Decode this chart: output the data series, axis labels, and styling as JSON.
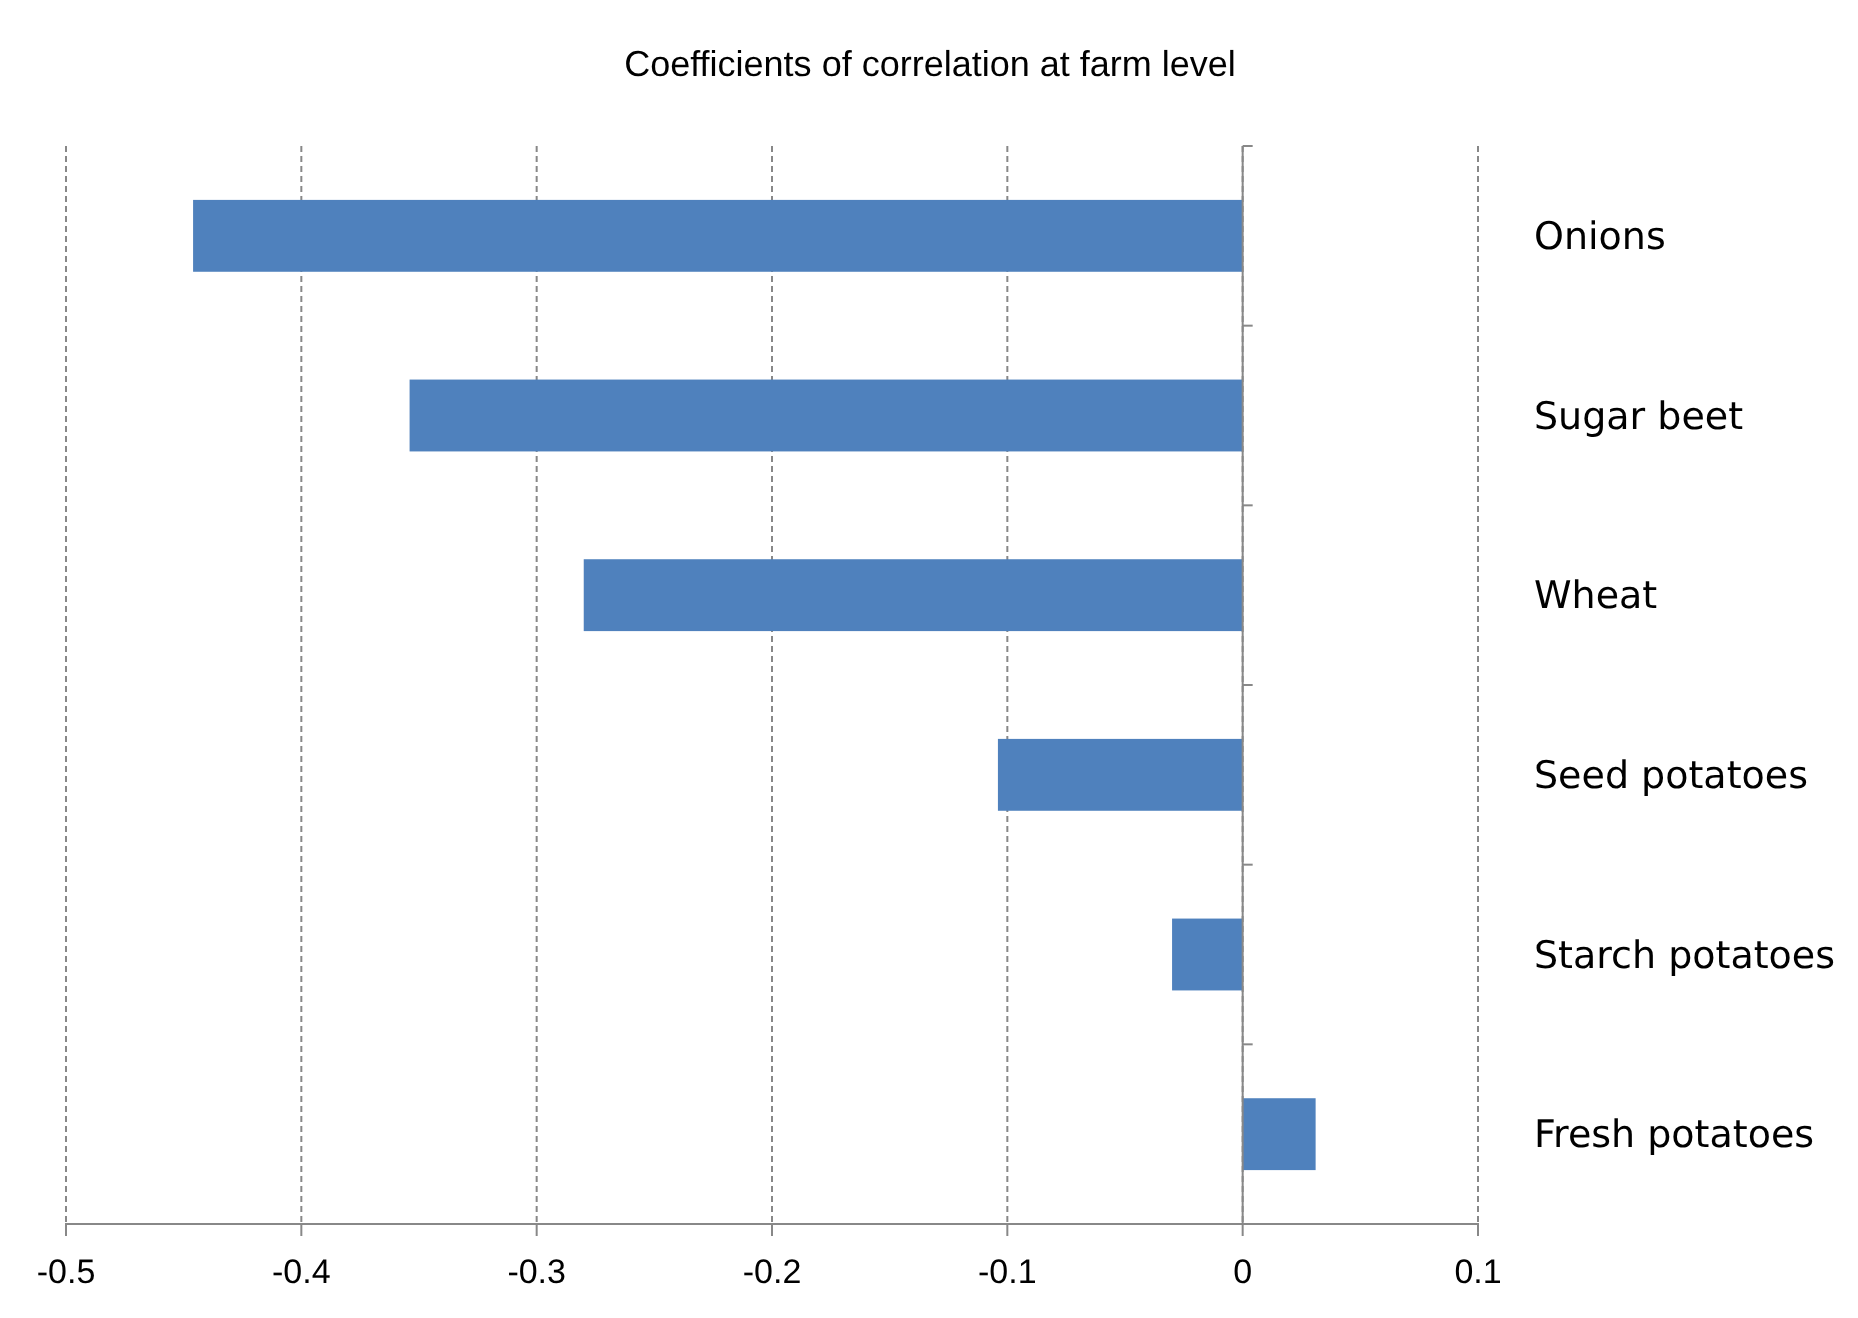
{
  "chart_data": {
    "type": "bar",
    "orientation": "horizontal",
    "title": "Coefficients of correlation at farm level",
    "categories": [
      "Onions",
      "Sugar beet",
      "Wheat",
      "Seed potatoes",
      "Starch potatoes",
      "Fresh potatoes"
    ],
    "values": [
      -0.446,
      -0.354,
      -0.28,
      -0.104,
      -0.03,
      0.031
    ],
    "color": "#4f81bd",
    "xlim": [
      -0.5,
      0.1
    ],
    "xticks": [
      -0.5,
      -0.4,
      -0.3,
      -0.2,
      -0.1,
      0,
      0.1
    ],
    "grid": "x"
  }
}
